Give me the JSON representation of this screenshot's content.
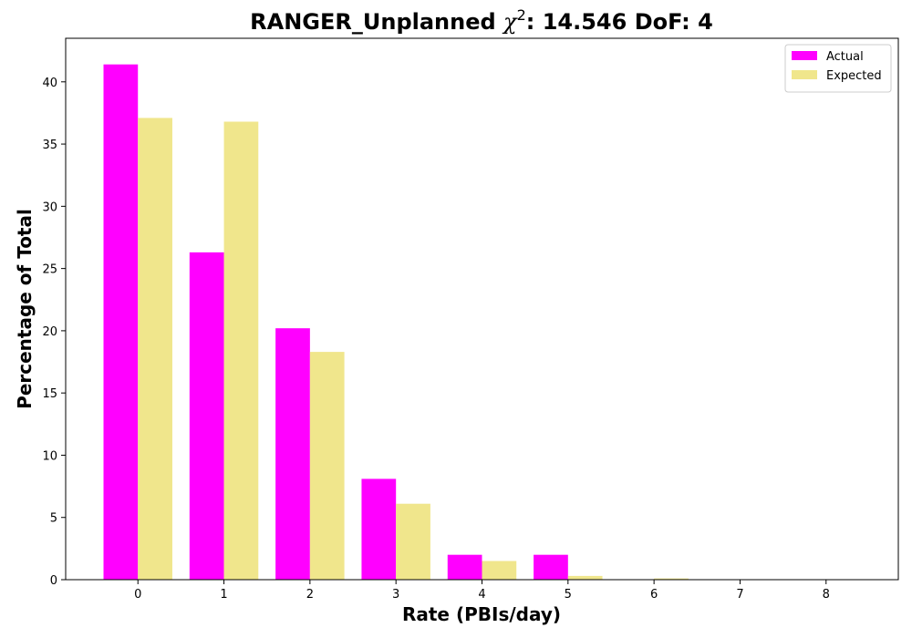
{
  "chart_data": {
    "type": "bar",
    "title_prefix": "RANGER_Unplanned ",
    "title_symbol": "χ",
    "title_superscript": "2",
    "title_suffix": ": 14.546 DoF: 4",
    "xlabel": "Rate (PBIs/day)",
    "ylabel": "Percentage of Total",
    "categories": [
      "0",
      "1",
      "2",
      "3",
      "4",
      "5",
      "6",
      "7",
      "8"
    ],
    "x": [
      0,
      1,
      2,
      3,
      4,
      5,
      6,
      7,
      8
    ],
    "xlim": [
      -0.84,
      8.84
    ],
    "ylim": [
      0,
      43.5
    ],
    "yticks": [
      0,
      5,
      10,
      15,
      20,
      25,
      30,
      35,
      40
    ],
    "legend_position": "top-right",
    "series": [
      {
        "name": "Actual",
        "color": "#ff00ff",
        "offset": -0.4,
        "width": 0.4,
        "values": [
          41.4,
          26.3,
          20.2,
          8.1,
          2.0,
          2.0,
          0,
          0,
          0
        ]
      },
      {
        "name": "Expected",
        "color": "#f0e68c",
        "offset": 0.0,
        "width": 0.4,
        "values": [
          37.1,
          36.8,
          18.3,
          6.1,
          1.5,
          0.3,
          0.1,
          0,
          0
        ]
      }
    ]
  }
}
